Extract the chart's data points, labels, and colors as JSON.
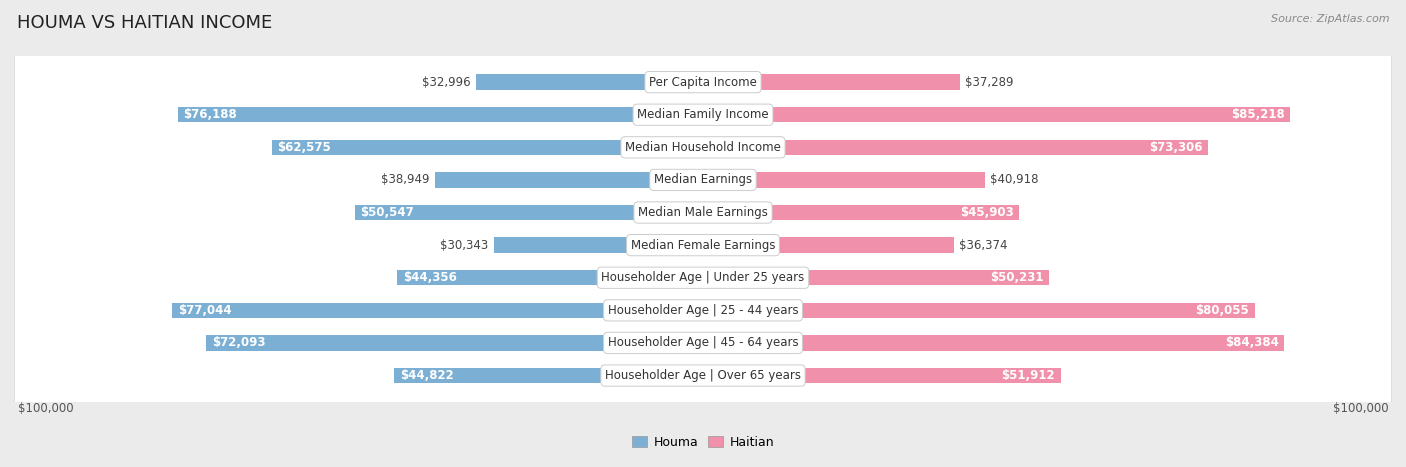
{
  "title": "HOUMA VS HAITIAN INCOME",
  "source": "Source: ZipAtlas.com",
  "categories": [
    "Per Capita Income",
    "Median Family Income",
    "Median Household Income",
    "Median Earnings",
    "Median Male Earnings",
    "Median Female Earnings",
    "Householder Age | Under 25 years",
    "Householder Age | 25 - 44 years",
    "Householder Age | 45 - 64 years",
    "Householder Age | Over 65 years"
  ],
  "houma_values": [
    32996,
    76188,
    62575,
    38949,
    50547,
    30343,
    44356,
    77044,
    72093,
    44822
  ],
  "haitian_values": [
    37289,
    85218,
    73306,
    40918,
    45903,
    36374,
    50231,
    80055,
    84384,
    51912
  ],
  "houma_label_inside": [
    false,
    true,
    true,
    false,
    false,
    false,
    false,
    true,
    true,
    false
  ],
  "haitian_label_inside": [
    false,
    true,
    true,
    false,
    false,
    false,
    false,
    true,
    true,
    false
  ],
  "houma_color": "#7bafd4",
  "haitian_color": "#f090aa",
  "haitian_color_bright": "#e05580",
  "houma_label": "Houma",
  "haitian_label": "Haitian",
  "xlim": 100000,
  "xlabel_left": "$100,000",
  "xlabel_right": "$100,000",
  "bg_color": "#ebebeb",
  "row_bg_color": "#f5f5f5",
  "title_fontsize": 13,
  "cat_fontsize": 8.5,
  "value_fontsize": 8.5,
  "axis_fontsize": 8.5,
  "legend_fontsize": 9
}
